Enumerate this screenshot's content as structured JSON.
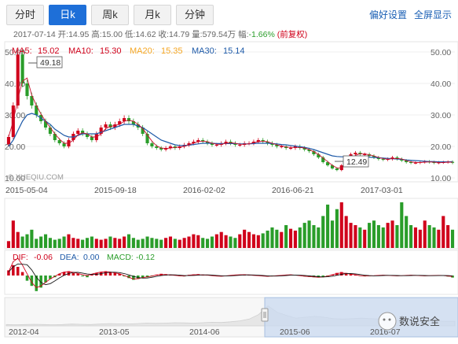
{
  "tabs": [
    {
      "label": "分时",
      "active": false
    },
    {
      "label": "日k",
      "active": true
    },
    {
      "label": "周k",
      "active": false
    },
    {
      "label": "月k",
      "active": false
    },
    {
      "label": "分钟",
      "active": false
    }
  ],
  "links": {
    "settings": "偏好设置",
    "fullscreen": "全屏显示"
  },
  "quote": {
    "date": "2017-07-14",
    "open_label": "开:",
    "open": "14.95",
    "high_label": "高:",
    "high": "15.00",
    "low_label": "低:",
    "low": "14.62",
    "close_label": "收:",
    "close": "14.79",
    "volume_label": "量:",
    "volume": "579.54万",
    "change_label": "幅:",
    "change": "-1.66%",
    "adjust": "(前复权)"
  },
  "ma": [
    {
      "label": "MA5:",
      "value": "15.02",
      "color": "#d0021b"
    },
    {
      "label": "MA10:",
      "value": "15.30",
      "color": "#d0021b"
    },
    {
      "label": "MA20:",
      "value": "15.35",
      "color": "#f5a623"
    },
    {
      "label": "MA30:",
      "value": "15.14",
      "color": "#1e5aa8"
    }
  ],
  "macd": [
    {
      "label": "DIF:",
      "value": "-0.06",
      "color": "#d0021b"
    },
    {
      "label": "DEA:",
      "value": "0.00",
      "color": "#1e5aa8"
    },
    {
      "label": "MACD:",
      "value": "-0.12",
      "color": "#2a9d2a"
    }
  ],
  "watermark": "© XUEQIU.COM",
  "max_label": "49.18",
  "min_label": "12.49",
  "brand": "数说安全",
  "colors": {
    "up": "#d0021b",
    "down": "#2a9d2a",
    "ma5": "#d0021b",
    "ma20": "#f5a623",
    "ma30": "#1e5aa8",
    "active_tab": "#1e6fd8"
  },
  "chart_data": {
    "type": "line",
    "yticks": [
      "10.00",
      "20.00",
      "30.00",
      "40.00",
      "50.00"
    ],
    "ylim": [
      10,
      52
    ],
    "xticks": [
      "2015-05-04",
      "2015-09-18",
      "2016-02-02",
      "2016-06-21",
      "2017-03-01"
    ],
    "nav_xticks": [
      "2012-04",
      "2013-05",
      "2014-06",
      "2015-06",
      "2016-07"
    ],
    "max_point": {
      "value": 49.18
    },
    "min_point": {
      "value": 12.49
    },
    "close": [
      23,
      33,
      49.18,
      40,
      36,
      33,
      30,
      28,
      26,
      24,
      22,
      21,
      20,
      22,
      24,
      25,
      24,
      23,
      22,
      24,
      26,
      27,
      26,
      27,
      28,
      29,
      28,
      27,
      26,
      24,
      21,
      20,
      19.5,
      19,
      19.5,
      20,
      19.5,
      20,
      20.5,
      21,
      21.5,
      22,
      21.5,
      21,
      20.5,
      20.5,
      21,
      21.5,
      21,
      20.5,
      20.5,
      21,
      21,
      21.5,
      22,
      21.5,
      21,
      20.5,
      20,
      20,
      19.5,
      19.5,
      20,
      19.5,
      19,
      18.5,
      17.5,
      16.5,
      15,
      14,
      13,
      12.49,
      14,
      16,
      17.5,
      18,
      17.5,
      17.5,
      17,
      16.5,
      16,
      15.8,
      16,
      16.5,
      16,
      15.5,
      15,
      14.8,
      14.8,
      15,
      15.2,
      15,
      14.8,
      14.9,
      15,
      15.1,
      14.79
    ],
    "ma30": [
      20,
      22,
      25,
      28,
      30,
      30.5,
      30,
      29,
      28,
      27,
      25.5,
      24.5,
      23.5,
      23,
      23,
      23.5,
      24,
      24,
      24,
      24,
      24.5,
      25,
      25.5,
      26,
      26.5,
      27,
      27,
      27,
      26.5,
      26,
      25,
      24,
      23,
      22,
      21.5,
      21,
      20.5,
      20.3,
      20.3,
      20.4,
      20.6,
      20.8,
      21,
      21,
      21,
      20.9,
      20.9,
      20.9,
      20.9,
      20.9,
      20.8,
      20.8,
      20.8,
      20.9,
      21,
      21,
      21,
      20.9,
      20.8,
      20.6,
      20.5,
      20.3,
      20.1,
      19.9,
      19.7,
      19.4,
      19,
      18.5,
      18,
      17.5,
      17,
      16.8,
      16.7,
      16.7,
      16.8,
      16.8,
      16.8,
      16.7,
      16.6,
      16.5,
      16.4,
      16.3,
      16.2,
      16.1,
      16,
      15.9,
      15.7,
      15.6,
      15.5,
      15.4,
      15.3,
      15.2,
      15.2,
      15.1,
      15.1,
      15.1,
      15.14
    ],
    "volume": [
      0.15,
      0.6,
      0.35,
      0.25,
      0.3,
      0.4,
      0.2,
      0.25,
      0.3,
      0.22,
      0.18,
      0.2,
      0.25,
      0.3,
      0.22,
      0.2,
      0.18,
      0.22,
      0.25,
      0.2,
      0.18,
      0.2,
      0.25,
      0.22,
      0.2,
      0.25,
      0.3,
      0.22,
      0.18,
      0.2,
      0.25,
      0.22,
      0.2,
      0.18,
      0.22,
      0.25,
      0.2,
      0.18,
      0.22,
      0.25,
      0.3,
      0.28,
      0.22,
      0.2,
      0.25,
      0.3,
      0.35,
      0.28,
      0.25,
      0.22,
      0.3,
      0.4,
      0.35,
      0.3,
      0.28,
      0.32,
      0.38,
      0.45,
      0.4,
      0.35,
      0.5,
      0.42,
      0.38,
      0.45,
      0.55,
      0.6,
      0.5,
      0.45,
      0.7,
      0.95,
      0.6,
      0.85,
      1.0,
      0.7,
      0.55,
      0.5,
      0.45,
      0.4,
      0.55,
      0.6,
      0.5,
      0.45,
      0.55,
      0.6,
      0.5,
      1.0,
      0.7,
      0.5,
      0.45,
      0.4,
      0.6,
      0.5,
      0.45,
      0.4,
      0.7,
      0.5,
      0.4
    ],
    "macd_hist": [
      0.3,
      0.6,
      0.5,
      0.2,
      -0.3,
      -0.6,
      -0.9,
      -0.7,
      -0.4,
      -0.2,
      -0.1,
      0.1,
      0.2,
      0.25,
      0.15,
      0.1,
      -0.05,
      -0.1,
      0.05,
      0.15,
      0.2,
      0.25,
      0.2,
      0.15,
      0.1,
      -0.05,
      -0.15,
      -0.25,
      -0.2,
      -0.15,
      -0.1,
      -0.05,
      0.05,
      0.1,
      0.08,
      0.05,
      0.02,
      -0.03,
      -0.05,
      0.04,
      0.06,
      0.08,
      0.05,
      0.03,
      -0.02,
      -0.04,
      -0.05,
      -0.03,
      0.02,
      0.04,
      0.05,
      0.06,
      0.04,
      0.02,
      -0.02,
      -0.04,
      -0.06,
      -0.04,
      -0.02,
      0.02,
      0.04,
      0.05,
      0.03,
      -0.02,
      -0.05,
      -0.08,
      -0.1,
      -0.12,
      -0.1,
      -0.05,
      0.05,
      0.15,
      0.2,
      0.15,
      0.1,
      0.05,
      -0.03,
      -0.05,
      -0.04,
      -0.02,
      0.02,
      0.03,
      0.02,
      -0.02,
      -0.03,
      -0.02,
      0.02,
      0.03,
      0.02,
      -0.02,
      -0.03,
      -0.02,
      0.01,
      0.02,
      0.01,
      -0.06,
      -0.12
    ],
    "dif": [
      0.2,
      0.8,
      1.0,
      0.6,
      0.1,
      -0.4,
      -0.7,
      -0.6,
      -0.4,
      -0.2,
      -0.05,
      0.1,
      0.2,
      0.22,
      0.18,
      0.12,
      0.05,
      0.0,
      0.08,
      0.15,
      0.2,
      0.22,
      0.2,
      0.15,
      0.1,
      0.0,
      -0.1,
      -0.2,
      -0.18,
      -0.12,
      -0.08,
      -0.03,
      0.03,
      0.06,
      0.05,
      0.03,
      0.01,
      -0.02,
      -0.03,
      0.02,
      0.04,
      0.05,
      0.03,
      0.02,
      -0.01,
      -0.03,
      -0.04,
      -0.02,
      0.01,
      0.03,
      0.04,
      0.05,
      0.03,
      0.01,
      -0.01,
      -0.03,
      -0.05,
      -0.03,
      -0.01,
      0.01,
      0.03,
      0.04,
      0.02,
      -0.01,
      -0.04,
      -0.06,
      -0.08,
      -0.1,
      -0.08,
      -0.03,
      0.04,
      0.12,
      0.15,
      0.12,
      0.08,
      0.04,
      -0.01,
      -0.03,
      -0.02,
      -0.01,
      0.01,
      0.02,
      0.01,
      -0.01,
      -0.02,
      -0.01,
      0.01,
      0.02,
      0.01,
      -0.01,
      -0.02,
      -0.01,
      0.0,
      0.01,
      0.0,
      -0.03,
      -0.06
    ]
  }
}
